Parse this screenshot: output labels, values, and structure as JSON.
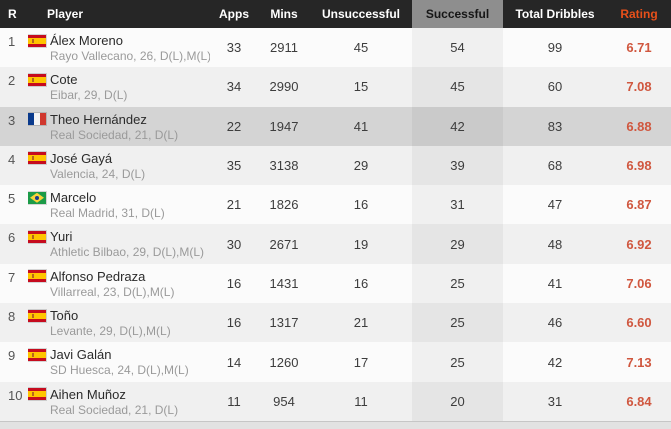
{
  "table": {
    "columns": [
      {
        "key": "rank",
        "label": "R"
      },
      {
        "key": "player",
        "label": "Player"
      },
      {
        "key": "apps",
        "label": "Apps"
      },
      {
        "key": "mins",
        "label": "Mins"
      },
      {
        "key": "unsuccessful",
        "label": "Unsuccessful"
      },
      {
        "key": "successful",
        "label": "Successful",
        "sorted": true
      },
      {
        "key": "total",
        "label": "Total Dribbles"
      },
      {
        "key": "rating",
        "label": "Rating"
      }
    ],
    "players": [
      {
        "rank": 1,
        "flag": "spain",
        "name": "Álex Moreno",
        "meta": "Rayo Vallecano, 26, D(L),M(L)",
        "apps": 33,
        "mins": 2911,
        "unsuccessful": 45,
        "successful": 54,
        "total": 99,
        "rating": "6.71",
        "highlighted": false
      },
      {
        "rank": 2,
        "flag": "spain",
        "name": "Cote",
        "meta": "Eibar, 29, D(L)",
        "apps": 34,
        "mins": 2990,
        "unsuccessful": 15,
        "successful": 45,
        "total": 60,
        "rating": "7.08",
        "highlighted": false
      },
      {
        "rank": 3,
        "flag": "france",
        "name": "Theo Hernández",
        "meta": "Real Sociedad, 21, D(L)",
        "apps": 22,
        "mins": 1947,
        "unsuccessful": 41,
        "successful": 42,
        "total": 83,
        "rating": "6.88",
        "highlighted": true
      },
      {
        "rank": 4,
        "flag": "spain",
        "name": "José Gayá",
        "meta": "Valencia, 24, D(L)",
        "apps": 35,
        "mins": 3138,
        "unsuccessful": 29,
        "successful": 39,
        "total": 68,
        "rating": "6.98",
        "highlighted": false
      },
      {
        "rank": 5,
        "flag": "brazil",
        "name": "Marcelo",
        "meta": "Real Madrid, 31, D(L)",
        "apps": 21,
        "mins": 1826,
        "unsuccessful": 16,
        "successful": 31,
        "total": 47,
        "rating": "6.87",
        "highlighted": false
      },
      {
        "rank": 6,
        "flag": "spain",
        "name": "Yuri",
        "meta": "Athletic Bilbao, 29, D(L),M(L)",
        "apps": 30,
        "mins": 2671,
        "unsuccessful": 19,
        "successful": 29,
        "total": 48,
        "rating": "6.92",
        "highlighted": false
      },
      {
        "rank": 7,
        "flag": "spain",
        "name": "Alfonso Pedraza",
        "meta": "Villarreal, 23, D(L),M(L)",
        "apps": 16,
        "mins": 1431,
        "unsuccessful": 16,
        "successful": 25,
        "total": 41,
        "rating": "7.06",
        "highlighted": false
      },
      {
        "rank": 8,
        "flag": "spain",
        "name": "Toño",
        "meta": "Levante, 29, D(L),M(L)",
        "apps": 16,
        "mins": 1317,
        "unsuccessful": 21,
        "successful": 25,
        "total": 46,
        "rating": "6.60",
        "highlighted": false
      },
      {
        "rank": 9,
        "flag": "spain",
        "name": "Javi Galán",
        "meta": "SD Huesca, 24, D(L),M(L)",
        "apps": 14,
        "mins": 1260,
        "unsuccessful": 17,
        "successful": 25,
        "total": 42,
        "rating": "7.13",
        "highlighted": false
      },
      {
        "rank": 10,
        "flag": "spain",
        "name": "Aihen Muñoz",
        "meta": "Real Sociedad, 21, D(L)",
        "apps": 11,
        "mins": 954,
        "unsuccessful": 11,
        "successful": 20,
        "total": 31,
        "rating": "6.84",
        "highlighted": false
      }
    ]
  },
  "colors": {
    "header_bg": "#262626",
    "sorted_header_bg": "#8e8e8e",
    "rating_header": "#e8501a",
    "rating_value": "#d0573f",
    "row_alt_bg": "#f0f0f0",
    "row_highlight_bg": "#d4d4d4"
  }
}
